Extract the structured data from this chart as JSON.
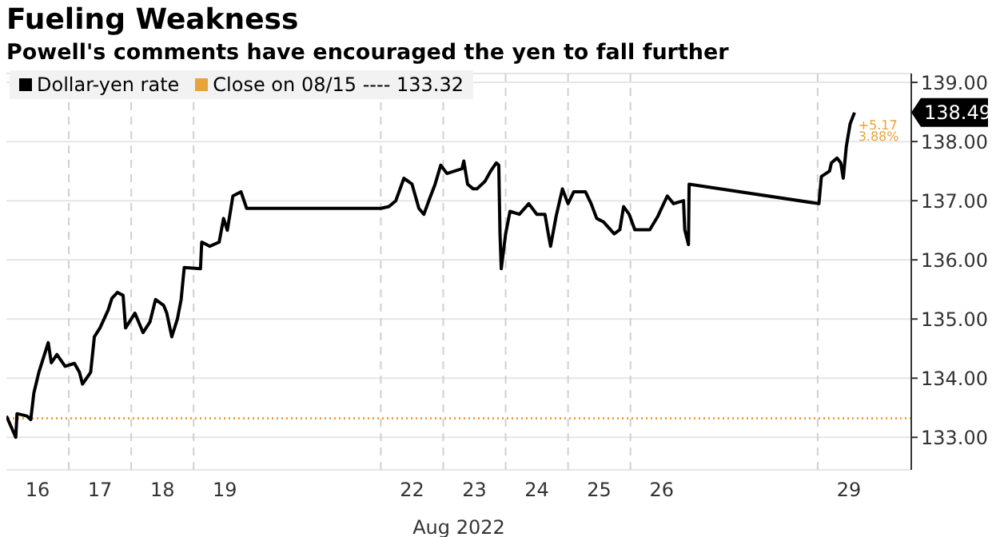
{
  "chart_data": {
    "type": "line",
    "title": "Fueling Weakness",
    "subtitle": "Powell's comments have encouraged the yen to fall further",
    "xlabel": "Aug 2022",
    "series": [
      {
        "name": "Dollar-yen rate",
        "color": "#000000",
        "x": [
          "2022-08-16T00:00",
          "2022-08-16T03:36",
          "2022-08-16T04:05",
          "2022-08-16T07:55",
          "2022-08-16T09:22",
          "2022-08-16T10:34",
          "2022-08-16T12:29",
          "2022-08-16T16:05",
          "2022-08-16T17:17",
          "2022-08-16T19:26",
          "2022-08-16T22:34",
          "2022-08-17T02:10",
          "2022-08-17T04:05",
          "2022-08-17T05:17",
          "2022-08-17T08:24",
          "2022-08-17T09:50",
          "2022-08-17T12:00",
          "2022-08-17T15:07",
          "2022-08-17T16:34",
          "2022-08-17T18:43",
          "2022-08-17T20:53",
          "2022-08-17T21:50",
          "2022-08-18T01:26",
          "2022-08-18T04:34",
          "2022-08-18T07:12",
          "2022-08-18T09:22",
          "2022-08-18T12:29",
          "2022-08-18T13:41",
          "2022-08-18T15:36",
          "2022-08-18T17:46",
          "2022-08-18T19:12",
          "2022-08-18T20:24",
          "2022-08-19T02:38",
          "2022-08-19T03:07",
          "2022-08-19T06:14",
          "2022-08-19T09:50",
          "2022-08-19T11:31",
          "2022-08-19T12:58",
          "2022-08-19T15:07",
          "2022-08-19T18:14",
          "2022-08-19T20:24",
          "2022-08-22T00:00",
          "2022-08-22T03:07",
          "2022-08-22T05:46",
          "2022-08-22T08:53",
          "2022-08-22T12:00",
          "2022-08-22T14:38",
          "2022-08-22T16:34",
          "2022-08-22T18:43",
          "2022-08-22T20:53",
          "2022-08-22T23:02",
          "2022-08-23T01:26",
          "2022-08-23T07:12",
          "2022-08-23T07:55",
          "2022-08-23T09:22",
          "2022-08-23T11:31",
          "2022-08-23T12:58",
          "2022-08-23T16:05",
          "2022-08-23T18:14",
          "2022-08-23T20:24",
          "2022-08-23T21:22",
          "2022-08-23T21:50",
          "2022-08-23T22:19",
          "2022-08-24T00:00",
          "2022-08-24T01:41",
          "2022-08-24T05:17",
          "2022-08-24T08:53",
          "2022-08-24T12:00",
          "2022-08-24T15:07",
          "2022-08-24T16:34",
          "2022-08-24T17:17",
          "2022-08-24T19:26",
          "2022-08-24T21:50",
          "2022-08-25T00:00",
          "2022-08-25T02:10",
          "2022-08-25T06:43",
          "2022-08-25T08:53",
          "2022-08-25T11:02",
          "2022-08-25T13:41",
          "2022-08-25T17:46",
          "2022-08-25T19:55",
          "2022-08-25T21:22",
          "2022-08-25T23:31",
          "2022-08-26T01:41",
          "2022-08-26T04:48",
          "2022-08-26T07:26",
          "2022-08-26T10:34",
          "2022-08-26T14:10",
          "2022-08-26T16:34",
          "2022-08-26T20:24",
          "2022-08-26T20:53",
          "2022-08-26T22:19",
          "2022-08-26T22:34",
          "2022-08-29T00:29",
          "2022-08-29T01:26",
          "2022-08-29T04:34",
          "2022-08-29T05:17",
          "2022-08-29T07:26",
          "2022-08-29T08:53",
          "2022-08-29T09:50",
          "2022-08-29T11:02",
          "2022-08-29T12:29",
          "2022-08-29T14:10"
        ],
        "values": [
          133.36,
          133.0,
          133.4,
          133.36,
          133.3,
          133.75,
          134.1,
          134.6,
          134.26,
          134.4,
          134.2,
          134.25,
          134.1,
          133.9,
          134.1,
          134.7,
          134.85,
          135.15,
          135.35,
          135.45,
          135.4,
          134.85,
          135.1,
          134.77,
          134.95,
          135.33,
          135.23,
          135.1,
          134.7,
          135.0,
          135.33,
          135.87,
          135.85,
          136.3,
          136.23,
          136.3,
          136.7,
          136.5,
          137.08,
          137.15,
          136.87,
          136.87,
          136.9,
          137.0,
          137.38,
          137.28,
          136.87,
          136.77,
          137.03,
          137.28,
          137.6,
          137.46,
          137.54,
          137.67,
          137.28,
          137.2,
          137.2,
          137.33,
          137.5,
          137.64,
          137.6,
          136.44,
          135.85,
          136.44,
          136.82,
          136.77,
          136.95,
          136.77,
          136.77,
          136.4,
          136.23,
          136.74,
          137.2,
          136.95,
          137.15,
          137.15,
          136.95,
          136.7,
          136.64,
          136.44,
          136.51,
          136.9,
          136.77,
          136.51,
          136.51,
          136.51,
          136.74,
          137.08,
          136.95,
          137.0,
          136.51,
          136.26,
          137.28,
          136.95,
          137.41,
          137.5,
          137.64,
          137.72,
          137.64,
          137.38,
          137.92,
          138.3,
          138.49
        ]
      }
    ],
    "xlim": [
      "2022-08-16T00:00",
      "2022-08-30T12:00"
    ],
    "xticks": [
      {
        "value": "2022-08-16T12:00",
        "label": "16"
      },
      {
        "value": "2022-08-17T00:00",
        "label": null
      },
      {
        "value": "2022-08-17T12:00",
        "label": "17"
      },
      {
        "value": "2022-08-18T00:00",
        "label": null
      },
      {
        "value": "2022-08-18T12:00",
        "label": "18"
      },
      {
        "value": "2022-08-19T00:00",
        "label": null
      },
      {
        "value": "2022-08-19T12:00",
        "label": "19"
      },
      {
        "value": "2022-08-22T00:00",
        "label": null
      },
      {
        "value": "2022-08-22T12:00",
        "label": "22"
      },
      {
        "value": "2022-08-23T00:00",
        "label": null
      },
      {
        "value": "2022-08-23T12:00",
        "label": "23"
      },
      {
        "value": "2022-08-24T00:00",
        "label": null
      },
      {
        "value": "2022-08-24T12:00",
        "label": "24"
      },
      {
        "value": "2022-08-25T00:00",
        "label": null
      },
      {
        "value": "2022-08-25T12:00",
        "label": "25"
      },
      {
        "value": "2022-08-26T00:00",
        "label": null
      },
      {
        "value": "2022-08-26T12:00",
        "label": "26"
      },
      {
        "value": "2022-08-29T00:00",
        "label": null
      },
      {
        "value": "2022-08-29T12:00",
        "label": "29"
      }
    ],
    "ylim": [
      132.45,
      139.15
    ],
    "yticks": [
      {
        "value": 133,
        "label": "133.00"
      },
      {
        "value": 134,
        "label": "134.00"
      },
      {
        "value": 135,
        "label": "135.00"
      },
      {
        "value": 136,
        "label": "136.00"
      },
      {
        "value": 137,
        "label": "137.00"
      },
      {
        "value": 138,
        "label": "138.00"
      },
      {
        "value": 139,
        "label": "139.00"
      }
    ],
    "ref_lines": [
      {
        "axis": "y",
        "value": 133.32,
        "label": "Close on 08/15 ---- 133.32",
        "color": "#e8a33d",
        "line_style": "dotted"
      }
    ],
    "annotations": [
      "138.49",
      "+5.17",
      "3.88%"
    ],
    "grid": true,
    "legend": "top left",
    "line_style": "solid",
    "marker": "none"
  }
}
